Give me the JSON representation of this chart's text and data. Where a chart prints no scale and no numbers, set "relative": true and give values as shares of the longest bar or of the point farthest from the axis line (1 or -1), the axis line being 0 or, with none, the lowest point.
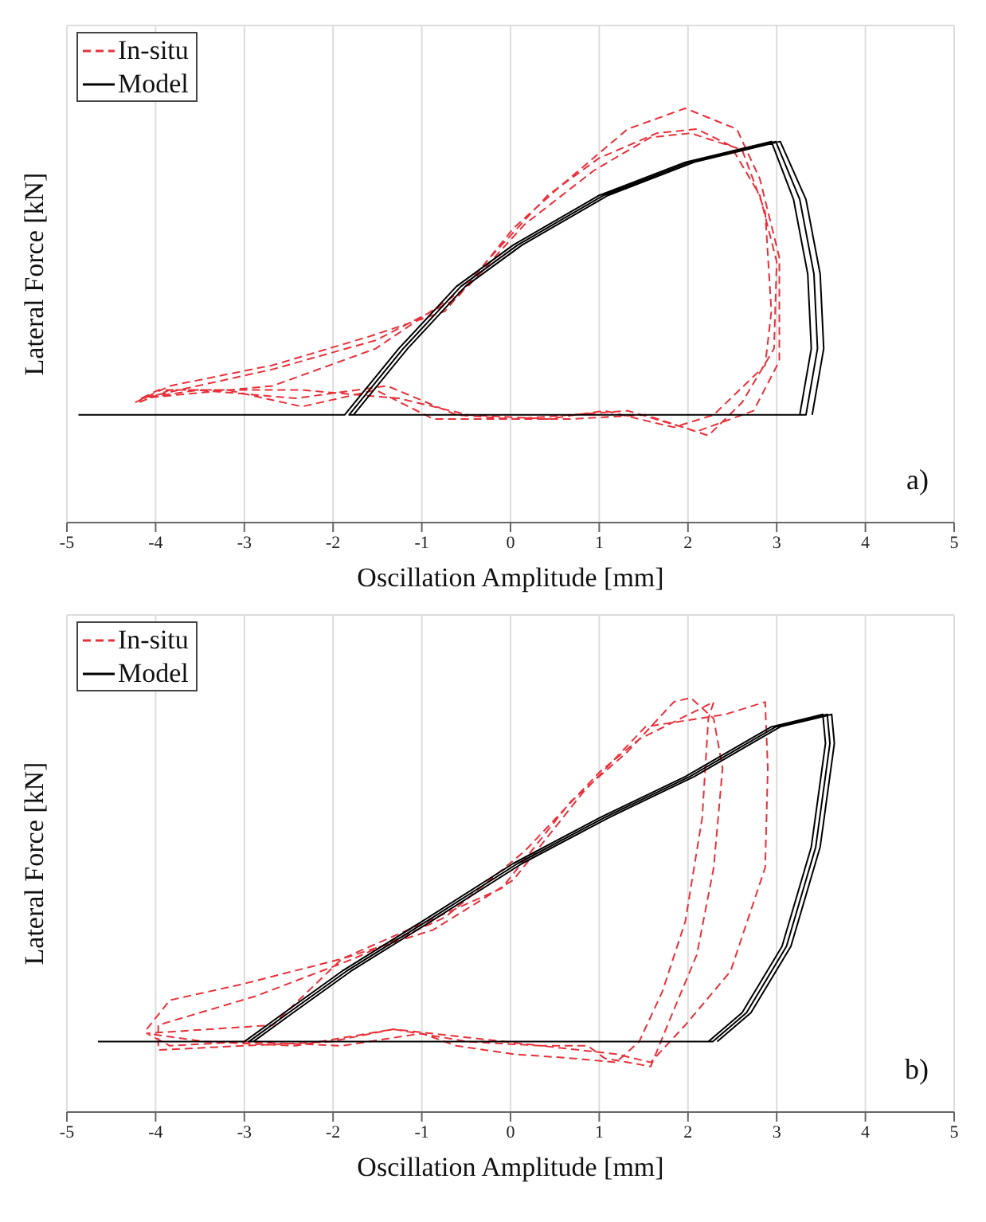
{
  "chart_data": [
    {
      "type": "line",
      "xlabel": "Oscillation Amplitude [mm]",
      "ylabel": "Lateral Force [kN]",
      "annotations": [
        "a)"
      ],
      "xlim": [
        -5,
        5
      ],
      "xticks": [
        -5,
        -4,
        -3,
        -2,
        -1,
        0,
        1,
        2,
        3,
        4,
        5
      ],
      "relative": true,
      "grid": true,
      "legend": "top left",
      "tick_labels": "x",
      "series": [
        {
          "name": "In-situ",
          "color": "#e8303a",
          "line_style": "dashed",
          "x": [
            -4.23,
            -3.84,
            -2.68,
            -1.58,
            -0.74,
            -0.23,
            0.42,
            1.0,
            1.65,
            2.1,
            2.48,
            2.81,
            3.0,
            2.97,
            2.61,
            2.23,
            1.52,
            0.68,
            0.03,
            -0.87,
            -1.52,
            -2.35,
            -3.19,
            -3.97,
            -4.16,
            -2.68,
            -1.52,
            -0.61,
            0.03,
            0.55,
            1.32,
            1.97,
            2.55,
            2.81,
            3.03,
            3.03,
            2.74,
            2.1,
            1.32,
            0.68,
            0.03,
            -0.61,
            -1.39,
            -2.42,
            -3.52,
            -4.16,
            -2.68,
            -1.52,
            -0.48,
            0.16,
            0.94,
            1.58,
            2.03,
            2.61,
            2.87,
            2.94,
            2.87,
            2.29,
            1.84,
            1.06,
            0.42,
            -0.48,
            -1.26,
            -2.35,
            -3.84,
            -4.19
          ],
          "values": [
            0.29,
            0.33,
            0.38,
            0.45,
            0.51,
            0.64,
            0.79,
            0.88,
            0.94,
            0.95,
            0.91,
            0.79,
            0.63,
            0.42,
            0.29,
            0.21,
            0.26,
            0.25,
            0.25,
            0.25,
            0.32,
            0.28,
            0.32,
            0.32,
            0.3,
            0.37,
            0.44,
            0.54,
            0.71,
            0.81,
            0.95,
            1,
            0.95,
            0.83,
            0.64,
            0.39,
            0.27,
            0.22,
            0.27,
            0.26,
            0.25,
            0.26,
            0.33,
            0.3,
            0.32,
            0.3,
            0.33,
            0.42,
            0.57,
            0.72,
            0.85,
            0.93,
            0.94,
            0.9,
            0.75,
            0.51,
            0.38,
            0.26,
            0.23,
            0.27,
            0.25,
            0.26,
            0.3,
            0.32,
            0.32,
            0.29
          ]
        },
        {
          "name": "Model",
          "color": "#000000",
          "line_style": "solid",
          "x": [
            -4.87,
            -1.87,
            -1.26,
            -0.61,
            0.03,
            1.0,
            1.97,
            2.94,
            3.19,
            3.35,
            3.39,
            3.26,
            -1.82,
            -1.21,
            -0.56,
            0.08,
            1.05,
            2.02,
            2.99,
            3.26,
            3.42,
            3.46,
            3.33,
            -1.77,
            -1.16,
            -0.51,
            0.13,
            1.1,
            2.07,
            3.04,
            3.33,
            3.49,
            3.53,
            3.4
          ],
          "values": [
            0.26,
            0.26,
            0.42,
            0.57,
            0.67,
            0.79,
            0.87,
            0.92,
            0.78,
            0.6,
            0.42,
            0.26,
            0.26,
            0.42,
            0.57,
            0.67,
            0.79,
            0.87,
            0.92,
            0.78,
            0.6,
            0.42,
            0.26,
            0.26,
            0.42,
            0.57,
            0.67,
            0.79,
            0.87,
            0.92,
            0.78,
            0.6,
            0.42,
            0.26
          ]
        }
      ]
    },
    {
      "type": "line",
      "xlabel": "Oscillation Amplitude [mm]",
      "ylabel": "Lateral Force [kN]",
      "annotations": [
        "b)"
      ],
      "xlim": [
        -5,
        5
      ],
      "xticks": [
        -5,
        -4,
        -3,
        -2,
        -1,
        0,
        1,
        2,
        3,
        4,
        5
      ],
      "relative": true,
      "grid": true,
      "legend": "top left",
      "tick_labels": "x",
      "series": [
        {
          "name": "In-situ",
          "color": "#e8303a",
          "line_style": "dashed",
          "x": [
            -4.1,
            -3.84,
            -3.0,
            -1.9,
            -0.94,
            -0.1,
            0.68,
            1.32,
            1.84,
            2.03,
            2.29,
            2.39,
            2.29,
            2.1,
            1.77,
            1.58,
            1.06,
            0.87,
            0.35,
            -0.48,
            -1.32,
            -2.03,
            -3.0,
            -3.97,
            -3.97,
            -2.87,
            -1.77,
            -0.74,
            0.16,
            1.0,
            1.45,
            2.29,
            2.23,
            2.16,
            1.97,
            1.71,
            1.45,
            1.19,
            0.68,
            0.03,
            -0.61,
            -1.0,
            -1.9,
            -3.0,
            -3.84,
            -4.1,
            -2.68,
            -1.9,
            -0.87,
            0.03,
            0.81,
            1.52,
            2.42,
            2.87,
            2.9,
            2.87,
            2.48,
            1.97,
            1.58,
            1.19,
            0.35,
            -0.48,
            -1.32,
            -2.42,
            -3.45,
            -4.1
          ],
          "values": [
            0.2,
            0.27,
            0.31,
            0.37,
            0.46,
            0.54,
            0.75,
            0.87,
            0.99,
            1,
            0.95,
            0.83,
            0.59,
            0.38,
            0.21,
            0.11,
            0.13,
            0.16,
            0.16,
            0.18,
            0.2,
            0.17,
            0.16,
            0.15,
            0.21,
            0.28,
            0.37,
            0.47,
            0.63,
            0.82,
            0.9,
            0.99,
            0.95,
            0.71,
            0.46,
            0.29,
            0.17,
            0.12,
            0.13,
            0.14,
            0.16,
            0.19,
            0.16,
            0.17,
            0.16,
            0.19,
            0.21,
            0.37,
            0.44,
            0.56,
            0.77,
            0.93,
            0.96,
            0.99,
            0.83,
            0.59,
            0.34,
            0.21,
            0.12,
            0.14,
            0.16,
            0.17,
            0.2,
            0.16,
            0.17,
            0.19
          ]
        },
        {
          "name": "Model",
          "color": "#000000",
          "line_style": "solid",
          "x": [
            -4.65,
            -3.0,
            -2.55,
            -1.9,
            -1.0,
            0.03,
            1.0,
            1.97,
            2.94,
            3.52,
            3.55,
            3.39,
            3.06,
            2.61,
            2.23,
            -2.95,
            -2.5,
            -1.85,
            -0.95,
            0.08,
            1.05,
            2.02,
            2.99,
            3.57,
            3.6,
            3.44,
            3.11,
            2.66,
            2.28,
            -2.9,
            -2.45,
            -1.8,
            -0.9,
            0.13,
            1.1,
            2.07,
            3.04,
            3.62,
            3.65,
            3.49,
            3.16,
            2.71,
            2.33
          ],
          "values": [
            0.17,
            0.17,
            0.24,
            0.34,
            0.46,
            0.6,
            0.71,
            0.81,
            0.93,
            0.96,
            0.89,
            0.64,
            0.4,
            0.24,
            0.17,
            0.17,
            0.24,
            0.34,
            0.46,
            0.6,
            0.71,
            0.81,
            0.93,
            0.96,
            0.89,
            0.64,
            0.4,
            0.24,
            0.17,
            0.17,
            0.24,
            0.34,
            0.46,
            0.6,
            0.71,
            0.81,
            0.93,
            0.96,
            0.89,
            0.64,
            0.4,
            0.24,
            0.17
          ]
        }
      ]
    }
  ]
}
